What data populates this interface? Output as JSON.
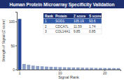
{
  "chart_data": {
    "type": "bar",
    "title": "Human Protein Microarray Specificity Validation",
    "y_label": "Strength of Signal (Z score)",
    "x_label": "Signal Rank",
    "categories": [
      "1",
      null,
      null,
      null,
      null,
      null,
      null,
      null,
      null,
      "10",
      null,
      null,
      null,
      null,
      null,
      null,
      null,
      null,
      null,
      "20",
      null,
      null,
      null
    ],
    "values": [
      105.19,
      11.59,
      9.85,
      8.2,
      7.4,
      6.8,
      6.2,
      5.8,
      5.4,
      5.1,
      4.8,
      4.6,
      4.4,
      4.2,
      4.0,
      3.8,
      3.7,
      3.5,
      3.4,
      3.3,
      3.2,
      3.1,
      3.0
    ],
    "colors": [
      "#24479a",
      "#8d9fc6",
      "#8d9fc6",
      "#8d9fc6",
      "#8d9fc6",
      "#8d9fc6",
      "#8d9fc6",
      "#8d9fc6",
      "#8d9fc6",
      "#8d9fc6",
      "#8d9fc6",
      "#8d9fc6",
      "#8d9fc6",
      "#8d9fc6",
      "#8d9fc6",
      "#8d9fc6",
      "#8d9fc6",
      "#8d9fc6",
      "#8d9fc6",
      "#8d9fc6",
      "#8d9fc6",
      "#8d9fc6",
      "#8d9fc6"
    ],
    "ylim": [
      0,
      120
    ],
    "yticks": [
      0,
      50,
      100
    ],
    "grid": false,
    "table": {
      "columns": [
        "Rank",
        "Protein",
        "Z score",
        "S score"
      ],
      "rows": [
        [
          1,
          "SOD1",
          105.19,
          93.6
        ],
        [
          2,
          "CDCA7L",
          11.59,
          1.74
        ],
        [
          3,
          "COL14A1",
          9.85,
          0.85
        ]
      ]
    }
  }
}
